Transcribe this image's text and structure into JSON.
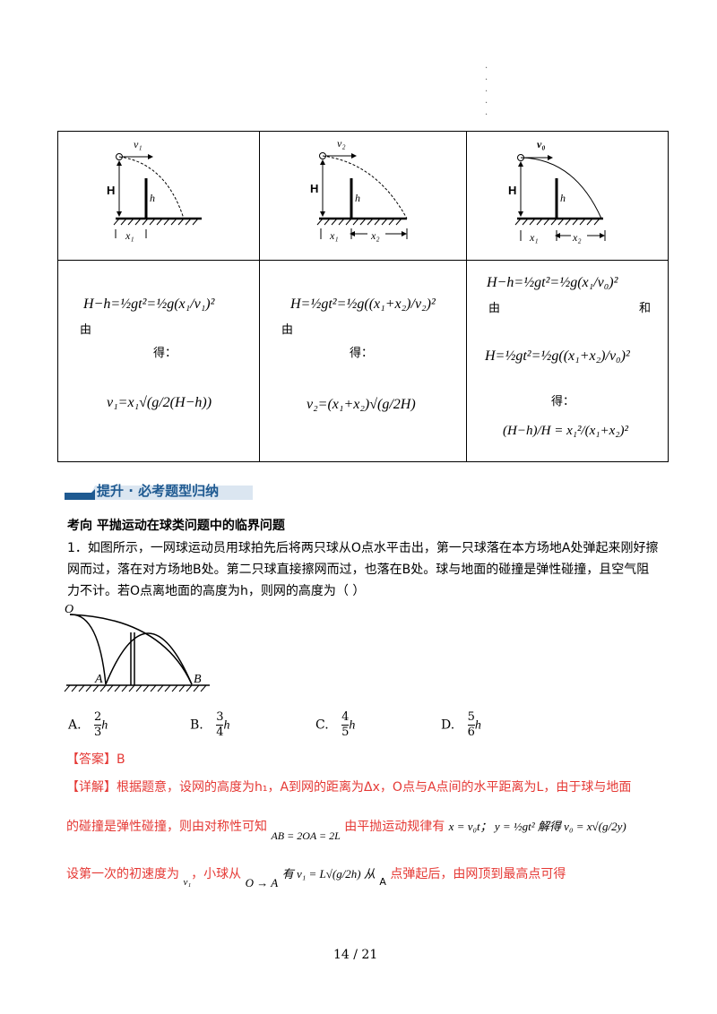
{
  "cells": {
    "c1_formula": "H−h=½gt²=½g(x₁/v₁)²",
    "c2_formula": "H=½gt²=½g((x₁+x₂)/v₂)²",
    "c3_formula1": "H−h=½gt²=½g(x₁/v₀)²",
    "c3_formula2": "H=½gt²=½g((x₁+x₂)/v₀)²",
    "you": "由",
    "de": "得：",
    "he": "和",
    "c1_result": "v₁=x₁√(g/2(H−h))",
    "c2_result": "v₂=(x₁+x₂)√(g/2H)",
    "c3_result": "(H−h)/H = x₁²/(x₁+x₂)²"
  },
  "diagram_labels": {
    "v1": "v₁",
    "v2": "v₂",
    "v0": "v₀",
    "H": "H",
    "h": "h",
    "x1": "x₁",
    "x2": "x₂"
  },
  "section": {
    "title": "提升 · 必考题型归纳"
  },
  "question": {
    "heading": "考向  平抛运动在球类问题中的临界问题",
    "text": "1．如图所示，一网球运动员用球拍先后将两只球从O点水平击出，第一只球落在本方场地A处弹起来刚好擦网而过，落在对方场地B处。第二只球直接擦网而过，也落在B处。球与地面的碰撞是弹性碰撞，且空气阻力不计。若O点离地面的高度为h，则网的高度为（        ）",
    "fig_O": "O",
    "fig_A": "A",
    "fig_B": "B"
  },
  "options": [
    {
      "letter": "A.",
      "num": "2",
      "den": "3",
      "var": "h"
    },
    {
      "letter": "B.",
      "num": "3",
      "den": "4",
      "var": "h"
    },
    {
      "letter": "C.",
      "num": "4",
      "den": "5",
      "var": "h"
    },
    {
      "letter": "D.",
      "num": "5",
      "den": "6",
      "var": "h"
    }
  ],
  "answer": {
    "label": "【答案】B",
    "detail_label": "【详解】",
    "line1": "根据题意，设网的高度为h₁，A到网的距离为Δx，O点与A点间的水平距离为L，由于球与地面",
    "line2a": "的碰撞是弹性碰撞，则由对称性可知",
    "line2b": "AB = 2OA = 2L",
    "line2c": "由平抛运动规律有",
    "line2d": "x = v₀t；  y = ½gt² 解得 v₀ = x√(g/2y)",
    "line3a": "设第一次的初速度为",
    "line3b": "v₁",
    "line3c": "，小球从",
    "line3d": "O → A",
    "line3e": "有 v₁ = L√(g/2h) 从",
    "line3f": "A",
    "line3g": "点弹起后，由网顶到最高点可得"
  },
  "footer": {
    "page": "14 / 21"
  }
}
